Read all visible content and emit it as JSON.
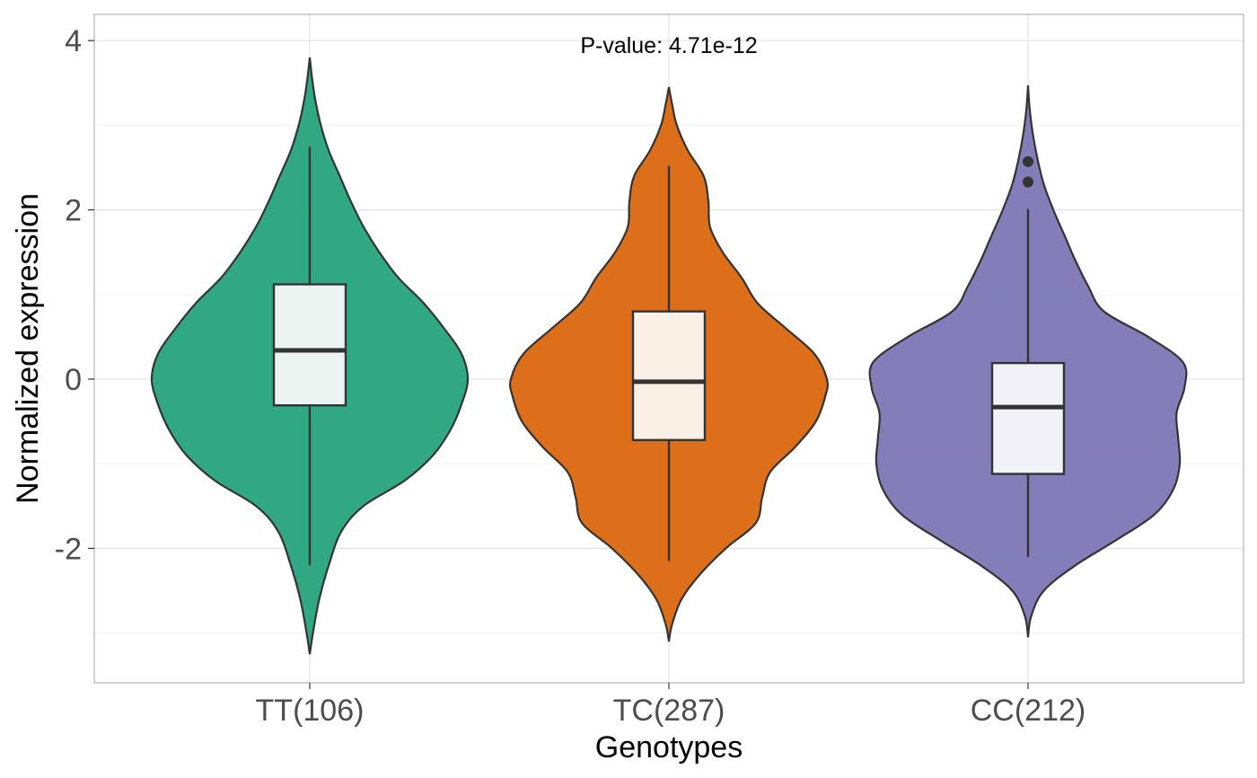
{
  "chart_data": {
    "type": "violin",
    "title": "",
    "xlabel": "Genotypes",
    "ylabel": "Normalized expression",
    "ylim": [
      -3.6,
      4.3
    ],
    "yticks": [
      -2,
      0,
      2,
      4
    ],
    "ytick_labels": [
      "-2",
      "0",
      "2",
      "4"
    ],
    "grid": true,
    "annotation": "P-value: 4.71e-12",
    "categories": [
      "TT(106)",
      "TC(287)",
      "CC(212)"
    ],
    "colors": [
      "#1b9e77",
      "#d95f02",
      "#7570b3"
    ],
    "box_fills": [
      "#ebf4f1",
      "#fbf0e6",
      "#f2f1f7"
    ],
    "series": [
      {
        "category": "TT(106)",
        "box": {
          "q1": -0.31,
          "median": 0.34,
          "q3": 1.12,
          "whisker_low": -2.2,
          "whisker_high": 2.75
        },
        "outliers": [],
        "violin": {
          "y": [
            -3.25,
            -3.0,
            -2.6,
            -2.2,
            -1.8,
            -1.5,
            -1.2,
            -0.9,
            -0.6,
            -0.3,
            0.0,
            0.3,
            0.6,
            0.9,
            1.2,
            1.5,
            1.8,
            2.1,
            2.4,
            2.7,
            3.0,
            3.3,
            3.55,
            3.8
          ],
          "width": [
            0.0,
            0.02,
            0.06,
            0.12,
            0.2,
            0.34,
            0.6,
            0.78,
            0.89,
            0.96,
            1.0,
            0.96,
            0.85,
            0.72,
            0.56,
            0.44,
            0.34,
            0.26,
            0.19,
            0.12,
            0.07,
            0.035,
            0.015,
            0.0
          ]
        }
      },
      {
        "category": "TC(287)",
        "box": {
          "q1": -0.72,
          "median": -0.03,
          "q3": 0.8,
          "whisker_low": -2.15,
          "whisker_high": 2.52
        },
        "outliers": [],
        "violin": {
          "y": [
            -3.1,
            -2.9,
            -2.6,
            -2.3,
            -2.0,
            -1.7,
            -1.4,
            -1.1,
            -0.8,
            -0.5,
            -0.2,
            0.0,
            0.3,
            0.6,
            0.9,
            1.2,
            1.5,
            1.8,
            2.1,
            2.4,
            2.7,
            3.0,
            3.25,
            3.45
          ],
          "width": [
            0.0,
            0.02,
            0.08,
            0.2,
            0.36,
            0.55,
            0.59,
            0.64,
            0.8,
            0.93,
            0.99,
            1.0,
            0.92,
            0.74,
            0.56,
            0.46,
            0.34,
            0.26,
            0.25,
            0.22,
            0.12,
            0.05,
            0.02,
            0.0
          ]
        }
      },
      {
        "category": "CC(212)",
        "box": {
          "q1": -1.12,
          "median": -0.33,
          "q3": 0.19,
          "whisker_low": -2.1,
          "whisker_high": 2.01
        },
        "outliers": [
          2.33,
          2.57
        ],
        "violin": {
          "y": [
            -3.05,
            -2.8,
            -2.5,
            -2.2,
            -1.9,
            -1.6,
            -1.3,
            -1.0,
            -0.7,
            -0.4,
            -0.1,
            0.2,
            0.5,
            0.8,
            1.1,
            1.4,
            1.7,
            2.0,
            2.3,
            2.6,
            2.9,
            3.2,
            3.47
          ],
          "width": [
            0.0,
            0.02,
            0.1,
            0.3,
            0.56,
            0.8,
            0.92,
            0.96,
            0.95,
            0.94,
            0.99,
            0.98,
            0.76,
            0.48,
            0.38,
            0.3,
            0.23,
            0.16,
            0.1,
            0.06,
            0.03,
            0.01,
            0.0
          ]
        }
      }
    ]
  }
}
